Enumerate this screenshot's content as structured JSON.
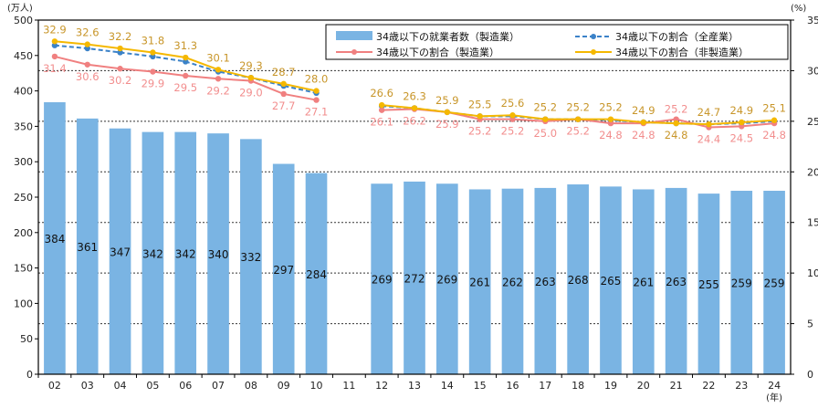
{
  "chart_data": {
    "type": "bar+line",
    "y_left_unit": "(万人)",
    "y_right_unit": "(%)",
    "x_unit": "(年)",
    "ylim_left": [
      0,
      500
    ],
    "ylim_right": [
      0,
      35
    ],
    "yticks_left": [
      0,
      50,
      100,
      150,
      200,
      250,
      300,
      350,
      400,
      450,
      500
    ],
    "yticks_right": [
      0,
      5,
      10,
      15,
      20,
      25,
      30,
      35
    ],
    "grid": "dotted horizontal",
    "legend_position": "top-right",
    "categories": [
      "02",
      "03",
      "04",
      "05",
      "06",
      "07",
      "08",
      "09",
      "10",
      "11",
      "12",
      "13",
      "14",
      "15",
      "16",
      "17",
      "18",
      "19",
      "20",
      "21",
      "22",
      "23",
      "24"
    ],
    "series": [
      {
        "name": "34歳以下の就業者数（製造業）",
        "type": "bar",
        "axis": "left",
        "color": "#7ab4e3",
        "values": [
          384,
          361,
          347,
          342,
          342,
          340,
          332,
          297,
          284,
          null,
          269,
          272,
          269,
          261,
          262,
          263,
          268,
          265,
          261,
          263,
          255,
          259,
          259
        ]
      },
      {
        "name": "34歳以下の割合（全産業）",
        "type": "line-dashed",
        "axis": "right",
        "color": "#3b82c8",
        "values": [
          32.5,
          32.2,
          31.8,
          31.4,
          30.9,
          29.9,
          29.3,
          28.5,
          27.8,
          null,
          26.5,
          26.3,
          25.9,
          25.5,
          25.5,
          25.2,
          25.2,
          25.1,
          24.9,
          24.8,
          24.7,
          24.8,
          25.0
        ]
      },
      {
        "name": "34歳以下の割合（製造業）",
        "type": "line",
        "axis": "right",
        "color": "#f08080",
        "label_color": "#f28e8e",
        "values": [
          31.4,
          30.6,
          30.2,
          29.9,
          29.5,
          29.2,
          29.0,
          27.7,
          27.1,
          null,
          26.1,
          26.2,
          25.9,
          25.2,
          25.2,
          25.0,
          25.2,
          24.8,
          24.8,
          25.2,
          24.4,
          24.5,
          24.8
        ]
      },
      {
        "name": "34歳以下の割合（非製造業）",
        "type": "line",
        "axis": "right",
        "color": "#f5b800",
        "label_color": "#c8962a",
        "values": [
          32.9,
          32.6,
          32.2,
          31.8,
          31.3,
          30.1,
          29.3,
          28.7,
          28.0,
          null,
          26.6,
          26.3,
          25.9,
          25.5,
          25.6,
          25.2,
          25.2,
          25.2,
          24.9,
          24.8,
          24.7,
          24.9,
          25.1
        ]
      }
    ]
  }
}
